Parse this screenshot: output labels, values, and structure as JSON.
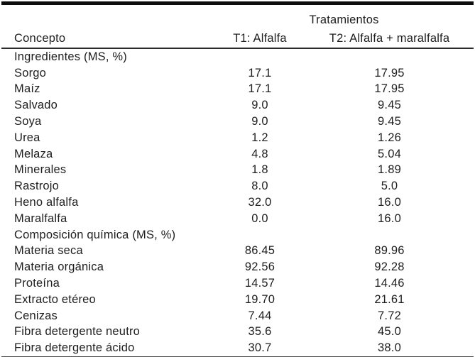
{
  "table": {
    "header": {
      "group_label": "Tratamientos",
      "concept_label": "Concepto",
      "t1_label": "T1: Alfalfa",
      "t2_label": "T2: Alfalfa + maralfalfa"
    },
    "sections": [
      {
        "title": "Ingredientes (MS, %)",
        "rows": [
          {
            "concept": "Sorgo",
            "t1": "17.1",
            "t2": "17.95"
          },
          {
            "concept": "Maíz",
            "t1": "17.1",
            "t2": "17.95"
          },
          {
            "concept": "Salvado",
            "t1": "9.0",
            "t2": "9.45"
          },
          {
            "concept": "Soya",
            "t1": "9.0",
            "t2": "9.45"
          },
          {
            "concept": "Urea",
            "t1": "1.2",
            "t2": "1.26"
          },
          {
            "concept": "Melaza",
            "t1": "4.8",
            "t2": "5.04"
          },
          {
            "concept": "Minerales",
            "t1": "1.8",
            "t2": "1.89"
          },
          {
            "concept": "Rastrojo",
            "t1": "8.0",
            "t2": "5.0"
          },
          {
            "concept": "Heno alfalfa",
            "t1": "32.0",
            "t2": "16.0"
          },
          {
            "concept": "Maralfalfa",
            "t1": "0.0",
            "t2": "16.0"
          }
        ]
      },
      {
        "title": "Composición química (MS, %)",
        "rows": [
          {
            "concept": "Materia seca",
            "t1": "86.45",
            "t2": "89.96"
          },
          {
            "concept": "Materia orgánica",
            "t1": "92.56",
            "t2": "92.28"
          },
          {
            "concept": "Proteína",
            "t1": "14.57",
            "t2": "14.46"
          },
          {
            "concept": "Extracto etéreo",
            "t1": "19.70",
            "t2": "21.61"
          },
          {
            "concept": "Cenizas",
            "t1": "7.44",
            "t2": "7.72"
          },
          {
            "concept": "Fibra detergente neutro",
            "t1": "35.6",
            "t2": "45.0"
          },
          {
            "concept": "Fibra detergente ácido",
            "t1": "30.7",
            "t2": "38.0"
          }
        ]
      }
    ]
  }
}
